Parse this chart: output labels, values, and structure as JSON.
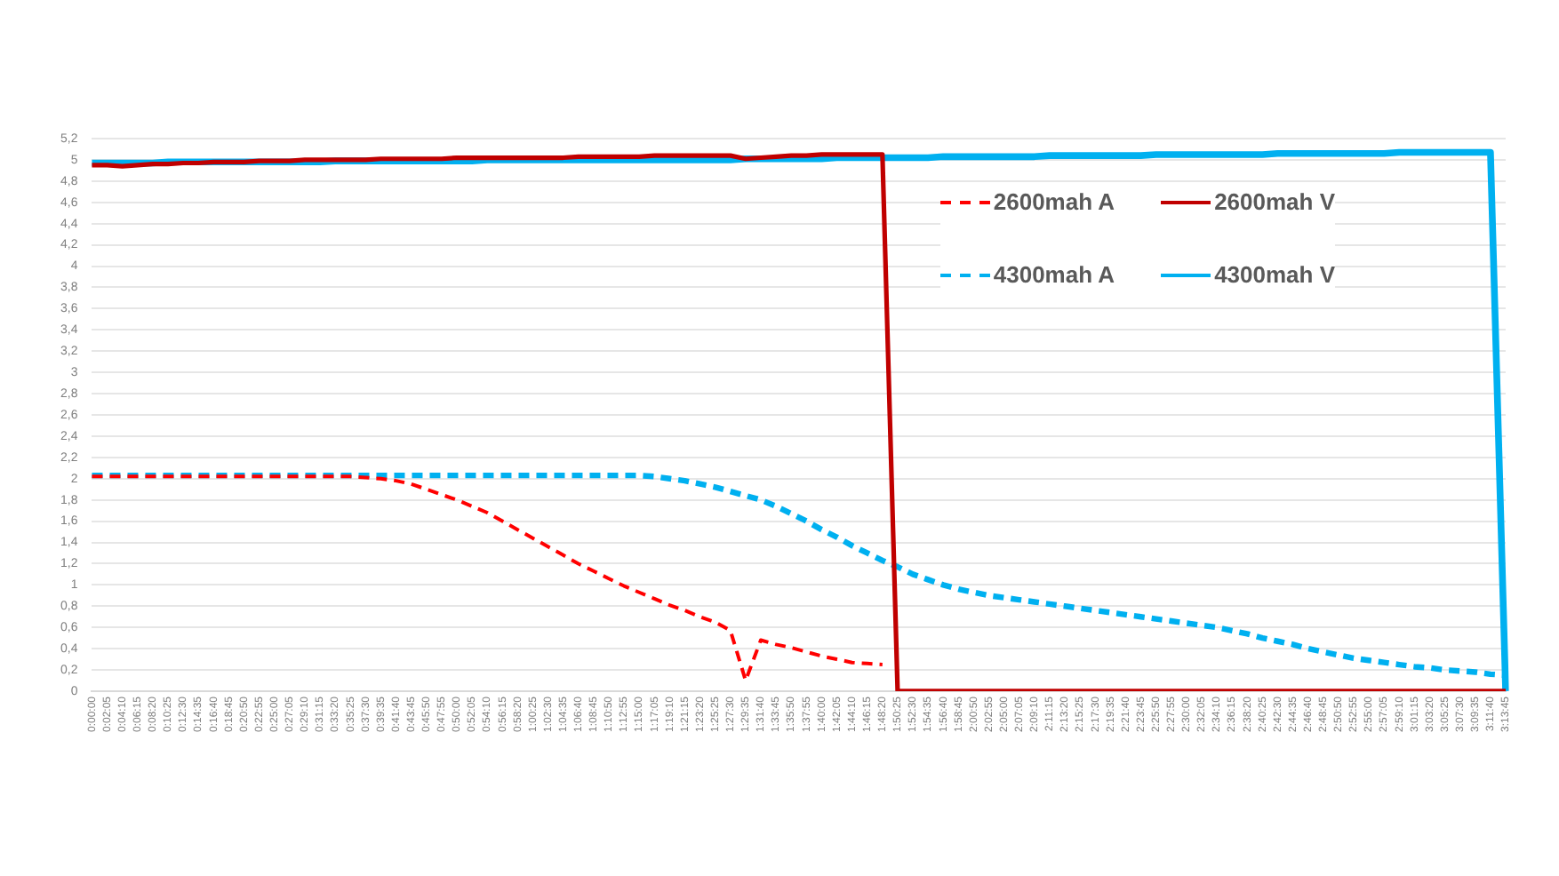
{
  "chart_data": {
    "type": "line",
    "categories": [
      "0:00:00",
      "0:02:05",
      "0:04:10",
      "0:06:15",
      "0:08:20",
      "0:10:25",
      "0:12:30",
      "0:14:35",
      "0:16:40",
      "0:18:45",
      "0:20:50",
      "0:22:55",
      "0:25:00",
      "0:27:05",
      "0:29:10",
      "0:31:15",
      "0:33:20",
      "0:35:25",
      "0:37:30",
      "0:39:35",
      "0:41:40",
      "0:43:45",
      "0:45:50",
      "0:47:55",
      "0:50:00",
      "0:52:05",
      "0:54:10",
      "0:56:15",
      "0:58:20",
      "1:00:25",
      "1:02:30",
      "1:04:35",
      "1:06:40",
      "1:08:45",
      "1:10:50",
      "1:12:55",
      "1:15:00",
      "1:17:05",
      "1:19:10",
      "1:21:15",
      "1:23:20",
      "1:25:25",
      "1:27:30",
      "1:29:35",
      "1:31:40",
      "1:33:45",
      "1:35:50",
      "1:37:55",
      "1:40:00",
      "1:42:05",
      "1:44:10",
      "1:46:15",
      "1:48:20",
      "1:50:25",
      "1:52:30",
      "1:54:35",
      "1:56:40",
      "1:58:45",
      "2:00:50",
      "2:02:55",
      "2:05:00",
      "2:07:05",
      "2:09:10",
      "2:11:15",
      "2:13:20",
      "2:15:25",
      "2:17:30",
      "2:19:35",
      "2:21:40",
      "2:23:45",
      "2:25:50",
      "2:27:55",
      "2:30:00",
      "2:32:05",
      "2:34:10",
      "2:36:15",
      "2:38:20",
      "2:40:25",
      "2:42:30",
      "2:44:35",
      "2:46:40",
      "2:48:45",
      "2:50:50",
      "2:52:55",
      "2:55:00",
      "2:57:05",
      "2:59:10",
      "3:01:15",
      "3:03:20",
      "3:05:25",
      "3:07:30",
      "3:09:35",
      "3:11:40",
      "3:13:45"
    ],
    "series": [
      {
        "name": "2600mah A",
        "color": "#ff0000",
        "line_style": "dashed",
        "values": [
          2.02,
          2.02,
          2.02,
          2.02,
          2.02,
          2.02,
          2.02,
          2.02,
          2.02,
          2.02,
          2.02,
          2.02,
          2.02,
          2.02,
          2.02,
          2.02,
          2.02,
          2.02,
          2.01,
          2.0,
          1.98,
          1.95,
          1.9,
          1.85,
          1.8,
          1.74,
          1.68,
          1.6,
          1.52,
          1.44,
          1.36,
          1.28,
          1.2,
          1.13,
          1.06,
          0.99,
          0.93,
          0.87,
          0.81,
          0.76,
          0.7,
          0.65,
          0.57,
          0.1,
          0.48,
          0.44,
          0.41,
          0.37,
          0.33,
          0.3,
          0.27,
          0.26,
          0.25,
          null,
          null,
          null,
          null,
          null,
          null,
          null,
          null,
          null,
          null,
          null,
          null,
          null,
          null,
          null,
          null,
          null,
          null,
          null,
          null,
          null,
          null,
          null,
          null,
          null,
          null,
          null,
          null,
          null,
          null,
          null,
          null,
          null,
          null,
          null,
          null,
          null,
          null,
          null,
          null,
          null
        ]
      },
      {
        "name": "2600mah V",
        "color": "#c00000",
        "line_style": "solid",
        "values": [
          4.95,
          4.95,
          4.94,
          4.95,
          4.96,
          4.96,
          4.97,
          4.97,
          4.98,
          4.98,
          4.98,
          4.99,
          4.99,
          4.99,
          5.0,
          5.0,
          5.0,
          5.0,
          5.0,
          5.01,
          5.01,
          5.01,
          5.01,
          5.01,
          5.02,
          5.02,
          5.02,
          5.02,
          5.02,
          5.02,
          5.02,
          5.02,
          5.03,
          5.03,
          5.03,
          5.03,
          5.03,
          5.04,
          5.04,
          5.04,
          5.04,
          5.04,
          5.04,
          5.01,
          5.02,
          5.03,
          5.04,
          5.04,
          5.05,
          5.05,
          5.05,
          5.05,
          5.05,
          0,
          0,
          0,
          0,
          0,
          0,
          0,
          0,
          0,
          0,
          0,
          0,
          0,
          0,
          0,
          0,
          0,
          0,
          0,
          0,
          0,
          0,
          0,
          0,
          0,
          0,
          0,
          0,
          0,
          0,
          0,
          0,
          0,
          0,
          0,
          0,
          0,
          0,
          0,
          0,
          0
        ]
      },
      {
        "name": "4300mah A",
        "color": "#00b0f0",
        "line_style": "dashed",
        "values": [
          2.03,
          2.03,
          2.03,
          2.03,
          2.03,
          2.03,
          2.03,
          2.03,
          2.03,
          2.03,
          2.03,
          2.03,
          2.03,
          2.03,
          2.03,
          2.03,
          2.03,
          2.03,
          2.03,
          2.03,
          2.03,
          2.03,
          2.03,
          2.03,
          2.03,
          2.03,
          2.03,
          2.03,
          2.03,
          2.03,
          2.03,
          2.03,
          2.03,
          2.03,
          2.03,
          2.03,
          2.03,
          2.02,
          2.0,
          1.98,
          1.95,
          1.92,
          1.88,
          1.84,
          1.8,
          1.74,
          1.67,
          1.6,
          1.52,
          1.45,
          1.37,
          1.3,
          1.23,
          1.17,
          1.1,
          1.05,
          1.0,
          0.96,
          0.93,
          0.9,
          0.88,
          0.86,
          0.84,
          0.82,
          0.8,
          0.78,
          0.76,
          0.74,
          0.72,
          0.7,
          0.68,
          0.66,
          0.64,
          0.62,
          0.6,
          0.57,
          0.54,
          0.5,
          0.47,
          0.44,
          0.4,
          0.37,
          0.34,
          0.31,
          0.29,
          0.27,
          0.25,
          0.23,
          0.22,
          0.2,
          0.19,
          0.18,
          0.16,
          0.15
        ]
      },
      {
        "name": "4300mah V",
        "color": "#00b0f0",
        "line_style": "solid",
        "values": [
          4.97,
          4.97,
          4.97,
          4.97,
          4.97,
          4.98,
          4.98,
          4.98,
          4.98,
          4.98,
          4.98,
          4.98,
          4.98,
          4.98,
          4.98,
          4.98,
          4.99,
          4.99,
          4.99,
          4.99,
          4.99,
          4.99,
          4.99,
          4.99,
          4.99,
          4.99,
          5.0,
          5.0,
          5.0,
          5.0,
          5.0,
          5.0,
          5.0,
          5.0,
          5.0,
          5.0,
          5.0,
          5.0,
          5.0,
          5.0,
          5.0,
          5.0,
          5.0,
          5.01,
          5.01,
          5.01,
          5.01,
          5.01,
          5.01,
          5.02,
          5.02,
          5.02,
          5.02,
          5.02,
          5.02,
          5.02,
          5.03,
          5.03,
          5.03,
          5.03,
          5.03,
          5.03,
          5.03,
          5.04,
          5.04,
          5.04,
          5.04,
          5.04,
          5.04,
          5.04,
          5.05,
          5.05,
          5.05,
          5.05,
          5.05,
          5.05,
          5.05,
          5.05,
          5.06,
          5.06,
          5.06,
          5.06,
          5.06,
          5.06,
          5.06,
          5.06,
          5.07,
          5.07,
          5.07,
          5.07,
          5.07,
          5.07,
          5.07,
          0
        ]
      }
    ],
    "ylim": [
      0,
      5.2
    ],
    "yticks": [
      {
        "value": 0,
        "label": "0"
      },
      {
        "value": 0.2,
        "label": "0,2"
      },
      {
        "value": 0.4,
        "label": "0,4"
      },
      {
        "value": 0.6,
        "label": "0,6"
      },
      {
        "value": 0.8,
        "label": "0,8"
      },
      {
        "value": 1,
        "label": "1"
      },
      {
        "value": 1.2,
        "label": "1,2"
      },
      {
        "value": 1.4,
        "label": "1,4"
      },
      {
        "value": 1.6,
        "label": "1,6"
      },
      {
        "value": 1.8,
        "label": "1,8"
      },
      {
        "value": 2,
        "label": "2"
      },
      {
        "value": 2.2,
        "label": "2,2"
      },
      {
        "value": 2.4,
        "label": "2,4"
      },
      {
        "value": 2.6,
        "label": "2,6"
      },
      {
        "value": 2.8,
        "label": "2,8"
      },
      {
        "value": 3,
        "label": "3"
      },
      {
        "value": 3.2,
        "label": "3,2"
      },
      {
        "value": 3.4,
        "label": "3,4"
      },
      {
        "value": 3.6,
        "label": "3,6"
      },
      {
        "value": 3.8,
        "label": "3,8"
      },
      {
        "value": 4,
        "label": "4"
      },
      {
        "value": 4.2,
        "label": "4,2"
      },
      {
        "value": 4.4,
        "label": "4,4"
      },
      {
        "value": 4.6,
        "label": "4,6"
      },
      {
        "value": 4.8,
        "label": "4,8"
      },
      {
        "value": 5,
        "label": "5"
      },
      {
        "value": 5.2,
        "label": "5,2"
      }
    ],
    "grid": "y",
    "legend": "top right",
    "marker": "none"
  }
}
